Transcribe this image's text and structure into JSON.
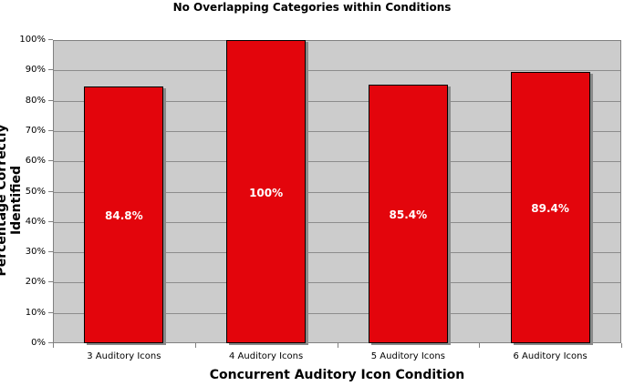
{
  "chart_data": {
    "type": "bar",
    "title": "No Overlapping Categories within Conditions",
    "xlabel": "Concurrent Auditory Icon Condition",
    "ylabel": "Percentage Correctly Identified",
    "categories": [
      "3 Auditory Icons",
      "4 Auditory Icons",
      "5 Auditory Icons",
      "6 Auditory Icons"
    ],
    "values": [
      84.8,
      100,
      85.4,
      89.4
    ],
    "data_labels": [
      "84.8%",
      "100%",
      "85.4%",
      "89.4%"
    ],
    "ylim": [
      0,
      100
    ],
    "yticks": [
      "0%",
      "10%",
      "20%",
      "30%",
      "40%",
      "50%",
      "60%",
      "70%",
      "80%",
      "90%",
      "100%"
    ],
    "grid": true,
    "legend": "none",
    "colors": {
      "bar": "#e3050c",
      "plot_background": "#cccccc",
      "gridline": "#8c8c8c"
    }
  }
}
